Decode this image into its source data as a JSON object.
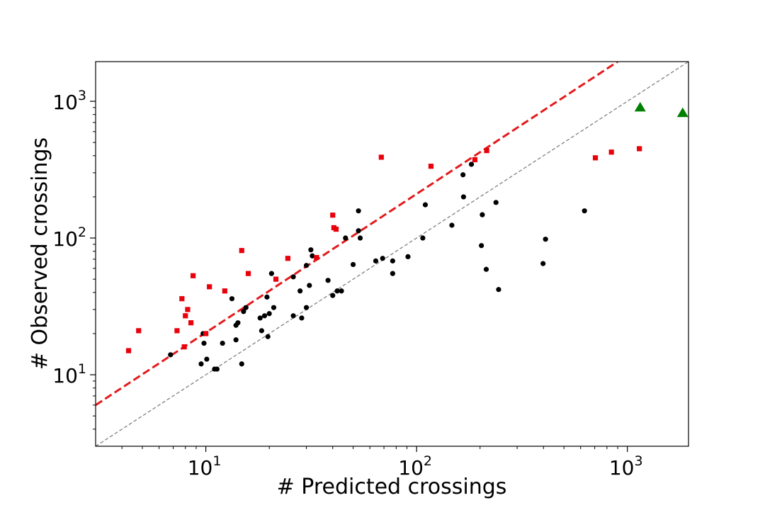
{
  "chart_data": {
    "type": "scatter",
    "title": "",
    "xlabel": "# Predicted crossings",
    "ylabel": "# Observed crossings",
    "xscale": "log",
    "yscale": "log",
    "xlim": [
      3,
      1950
    ],
    "ylim": [
      3,
      1950
    ],
    "grid": false,
    "legend": "none",
    "x_ticks": [
      {
        "value": 10,
        "base": "10",
        "exp": "1"
      },
      {
        "value": 100,
        "base": "10",
        "exp": "2"
      },
      {
        "value": 1000,
        "base": "10",
        "exp": "3"
      }
    ],
    "y_ticks": [
      {
        "value": 10,
        "base": "10",
        "exp": "1"
      },
      {
        "value": 100,
        "base": "10",
        "exp": "2"
      },
      {
        "value": 1000,
        "base": "10",
        "exp": "3"
      }
    ],
    "lines": [
      {
        "style": "dashed",
        "color": "#e41a1c",
        "width": 3,
        "points": [
          [
            3,
            6
          ],
          [
            900,
            1950
          ]
        ]
      },
      {
        "style": "dashed",
        "color": "#808080",
        "width": 1.3,
        "points": [
          [
            3,
            3
          ],
          [
            1950,
            1950
          ]
        ]
      }
    ],
    "series": [
      {
        "marker": "circle",
        "color": "#000000",
        "points": [
          [
            6.8,
            14
          ],
          [
            9.5,
            12
          ],
          [
            9.7,
            20
          ],
          [
            9.8,
            17
          ],
          [
            10.1,
            13
          ],
          [
            11,
            11
          ],
          [
            11.3,
            11
          ],
          [
            12,
            17
          ],
          [
            13.3,
            36
          ],
          [
            13.9,
            23
          ],
          [
            14.2,
            24
          ],
          [
            13.9,
            18
          ],
          [
            14.8,
            12
          ],
          [
            15.1,
            29
          ],
          [
            15.5,
            31
          ],
          [
            18.1,
            26
          ],
          [
            18.4,
            21
          ],
          [
            19,
            27
          ],
          [
            19.5,
            37
          ],
          [
            19.7,
            19
          ],
          [
            20,
            28
          ],
          [
            20.5,
            55
          ],
          [
            21,
            31
          ],
          [
            26,
            52
          ],
          [
            26,
            27
          ],
          [
            28,
            41
          ],
          [
            28.5,
            26
          ],
          [
            30,
            31
          ],
          [
            30,
            63
          ],
          [
            31,
            45
          ],
          [
            31.5,
            82
          ],
          [
            32,
            74
          ],
          [
            38,
            49
          ],
          [
            40,
            38
          ],
          [
            42,
            41
          ],
          [
            44,
            41
          ],
          [
            46,
            100
          ],
          [
            50,
            64
          ],
          [
            53,
            113
          ],
          [
            53,
            158
          ],
          [
            54,
            100
          ],
          [
            64,
            68
          ],
          [
            69,
            71
          ],
          [
            77,
            55
          ],
          [
            77,
            68
          ],
          [
            91,
            73
          ],
          [
            107,
            100
          ],
          [
            110,
            175
          ],
          [
            147,
            124
          ],
          [
            166,
            290
          ],
          [
            167,
            200
          ],
          [
            182,
            346
          ],
          [
            203,
            88
          ],
          [
            205,
            148
          ],
          [
            214,
            59
          ],
          [
            238,
            182
          ],
          [
            245,
            42
          ],
          [
            398,
            65
          ],
          [
            409,
            98
          ],
          [
            626,
            158
          ]
        ]
      },
      {
        "marker": "square",
        "color": "#e8000b",
        "points": [
          [
            4.3,
            15
          ],
          [
            4.8,
            21
          ],
          [
            7.3,
            21
          ],
          [
            7.7,
            36
          ],
          [
            7.9,
            16
          ],
          [
            8.0,
            27
          ],
          [
            8.2,
            30
          ],
          [
            8.5,
            24
          ],
          [
            8.7,
            53
          ],
          [
            10,
            20
          ],
          [
            10.4,
            44
          ],
          [
            12.3,
            41
          ],
          [
            14.8,
            81
          ],
          [
            15.9,
            55
          ],
          [
            21.5,
            50
          ],
          [
            24.5,
            71
          ],
          [
            33.5,
            72
          ],
          [
            40,
            147
          ],
          [
            40.5,
            119
          ],
          [
            41.5,
            116
          ],
          [
            68,
            390
          ],
          [
            117,
            335
          ],
          [
            189,
            374
          ],
          [
            215,
            436
          ],
          [
            705,
            386
          ],
          [
            840,
            425
          ],
          [
            1140,
            450
          ]
        ]
      },
      {
        "marker": "triangle",
        "color": "#008000",
        "points": [
          [
            1150,
            900
          ],
          [
            1830,
            820
          ]
        ]
      }
    ]
  }
}
